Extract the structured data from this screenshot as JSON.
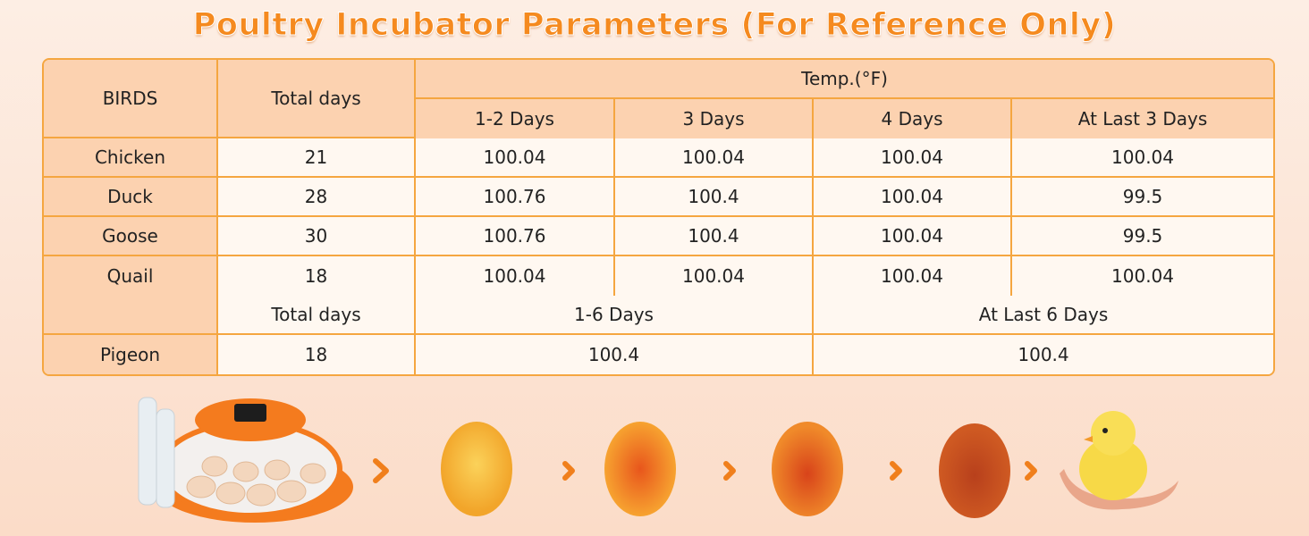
{
  "title": "Poultry Incubator Parameters (For Reference Only)",
  "table": {
    "header": {
      "birds": "BIRDS",
      "total_days": "Total days",
      "temp": "Temp.(°F)",
      "periods": [
        "1-2 Days",
        "3 Days",
        "4 Days",
        "At Last 3 Days"
      ]
    },
    "rows": [
      [
        "Chicken",
        "21",
        "100.04",
        "100.04",
        "100.04",
        "100.04"
      ],
      [
        "Duck",
        "28",
        "100.76",
        "100.4",
        "100.04",
        "99.5"
      ],
      [
        "Goose",
        "30",
        "100.76",
        "100.4",
        "100.04",
        "99.5"
      ],
      [
        "Quail",
        "18",
        "100.04",
        "100.04",
        "100.04",
        "100.04"
      ]
    ],
    "pigeon_header": {
      "total_days": "Total days",
      "periods": [
        "1-6 Days",
        "At Last 6 Days"
      ]
    },
    "pigeon_row": [
      "Pigeon",
      "18",
      "100.4",
      "100.4"
    ]
  }
}
